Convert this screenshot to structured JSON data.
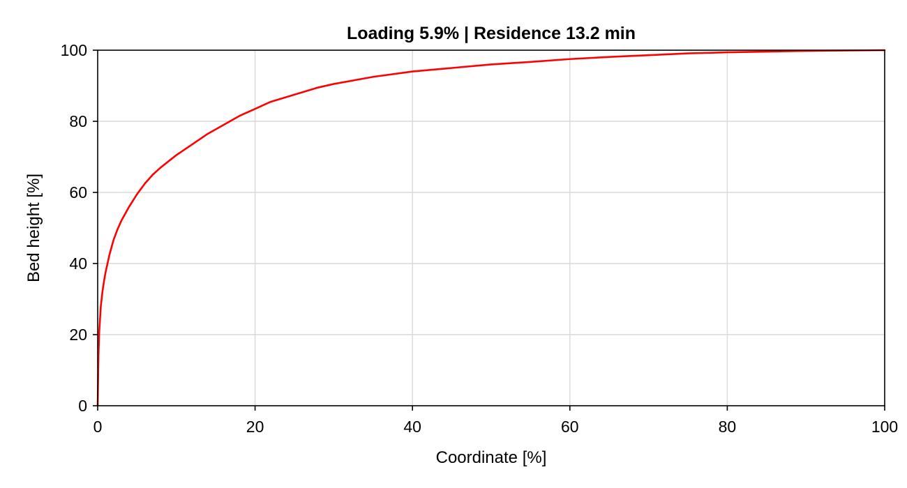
{
  "chart_data": {
    "type": "line",
    "title": "Loading 5.9% | Residence 13.2 min",
    "xlabel": "Coordinate [%]",
    "ylabel": "Bed height [%]",
    "xlim": [
      0,
      100
    ],
    "ylim": [
      0,
      100
    ],
    "xticks": [
      0,
      20,
      40,
      60,
      80,
      100
    ],
    "yticks": [
      0,
      20,
      40,
      60,
      80,
      100
    ],
    "xtick_labels": [
      "0",
      "20",
      "40",
      "60",
      "80",
      "100"
    ],
    "ytick_labels": [
      "0",
      "20",
      "40",
      "60",
      "80",
      "100"
    ],
    "grid": true,
    "legend": "none",
    "series": [
      {
        "color": "#ff0000",
        "x": [
          0,
          0.1,
          0.2,
          0.4,
          0.6,
          0.8,
          1,
          1.5,
          2,
          2.5,
          3,
          4,
          5,
          6,
          7,
          8,
          10,
          12,
          14,
          16,
          18,
          20,
          22,
          25,
          28,
          30,
          35,
          40,
          45,
          50,
          55,
          60,
          65,
          70,
          75,
          80,
          85,
          90,
          95,
          100
        ],
        "y": [
          0,
          14,
          21,
          28,
          32,
          35,
          37.5,
          42.5,
          46.5,
          49.5,
          52,
          56,
          59.5,
          62.5,
          65,
          67,
          70.5,
          73.5,
          76.5,
          79,
          81.5,
          83.5,
          85.5,
          87.5,
          89.5,
          90.5,
          92.5,
          94,
          95,
          96,
          96.7,
          97.5,
          98.1,
          98.6,
          99.1,
          99.4,
          99.6,
          99.8,
          99.9,
          100
        ]
      }
    ]
  }
}
